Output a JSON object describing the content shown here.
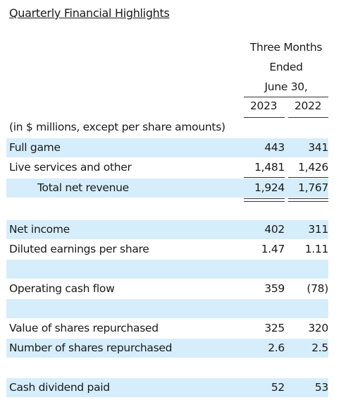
{
  "title": "Quarterly Financial Highlights",
  "header": {
    "line1": "Three Months",
    "line2": "Ended",
    "line3": "June 30,",
    "year1": "2023",
    "year2": "2022"
  },
  "caption": "(in $ millions, except per share amounts)",
  "rows": [
    {
      "label": "Full game",
      "v2023": "443",
      "v2022": "341"
    },
    {
      "label": "Live services and other",
      "v2023": "1,481",
      "v2022": "1,426"
    },
    {
      "label": "Total net revenue",
      "v2023": "1,924",
      "v2022": "1,767"
    },
    {
      "label": "Net income",
      "v2023": "402",
      "v2022": "311"
    },
    {
      "label": "Diluted earnings per share",
      "v2023": "1.47",
      "v2022": "1.11"
    },
    {
      "label": "Operating cash flow",
      "v2023": "359",
      "v2022": "(78)"
    },
    {
      "label": "Value of shares repurchased",
      "v2023": "325",
      "v2022": "320"
    },
    {
      "label": "Number of shares repurchased",
      "v2023": "2.6",
      "v2022": "2.5"
    },
    {
      "label": "Cash dividend paid",
      "v2023": "52",
      "v2022": "53"
    }
  ]
}
